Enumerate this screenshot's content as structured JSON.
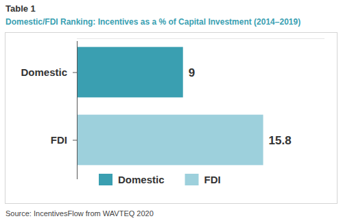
{
  "chart_data": {
    "type": "bar",
    "title": "Table 1",
    "subtitle": "Domestic/FDI Ranking: Incentives as a % of Capital Investment (2014–2019)",
    "source": "Source: IncentivesFlow from WAVTEQ 2020",
    "orientation": "horizontal",
    "categories": [
      "Domestic",
      "FDI"
    ],
    "series": [
      {
        "name": "Domestic",
        "color": "#3a9fb1",
        "values": [
          9,
          null
        ]
      },
      {
        "name": "FDI",
        "color": "#9dd0dc",
        "values": [
          null,
          15.8
        ]
      }
    ],
    "xlim": [
      0,
      21
    ],
    "data_labels": true,
    "legend": "bottom",
    "tick_labels": "y"
  }
}
